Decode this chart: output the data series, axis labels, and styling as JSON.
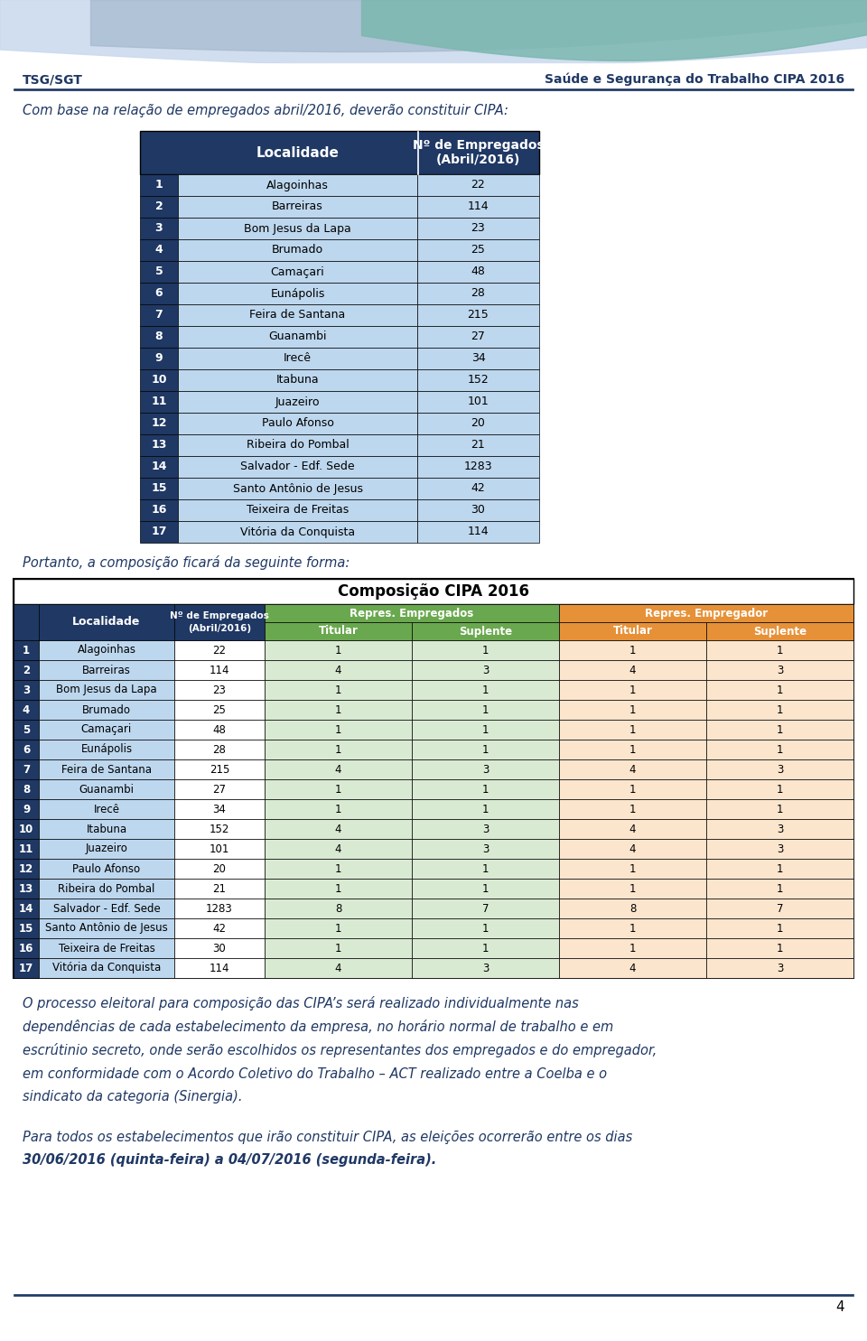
{
  "header_left": "TSG/SGT",
  "header_right": "Saúde e Segurança do Trabalho CIPA 2016",
  "intro_text": "Com base na relação de empregados abril/2016, deverão constituir CIPA:",
  "table1_header_col1": "Localidade",
  "table1_header_col2_line1": "Nº de Empregados",
  "table1_header_col2_line2": "(Abril/2016)",
  "table1_rows": [
    [
      1,
      "Alagoinhas",
      22
    ],
    [
      2,
      "Barreiras",
      114
    ],
    [
      3,
      "Bom Jesus da Lapa",
      23
    ],
    [
      4,
      "Brumado",
      25
    ],
    [
      5,
      "Camaçari",
      48
    ],
    [
      6,
      "Eunápolis",
      28
    ],
    [
      7,
      "Feira de Santana",
      215
    ],
    [
      8,
      "Guanambi",
      27
    ],
    [
      9,
      "Irecê",
      34
    ],
    [
      10,
      "Itabuna",
      152
    ],
    [
      11,
      "Juazeiro",
      101
    ],
    [
      12,
      "Paulo Afonso",
      20
    ],
    [
      13,
      "Ribeira do Pombal",
      21
    ],
    [
      14,
      "Salvador - Edf. Sede",
      1283
    ],
    [
      15,
      "Santo Antônio de Jesus",
      42
    ],
    [
      16,
      "Teixeira de Freitas",
      30
    ],
    [
      17,
      "Vitória da Conquista",
      114
    ]
  ],
  "between_text": "Portanto, a composição ficará da seguinte forma:",
  "table2_title": "Composição CIPA 2016",
  "table2_header1": "Repres. Empregados",
  "table2_header2": "Repres. Empregador",
  "table2_col_loc": "Localidade",
  "table2_col_emp_line1": "Nº de Empregados",
  "table2_col_emp_line2": "(Abril/2016)",
  "table2_subheader": [
    "Titular",
    "Suplente",
    "Titular",
    "Suplente"
  ],
  "table2_rows": [
    [
      1,
      "Alagoinhas",
      22,
      1,
      1,
      1,
      1
    ],
    [
      2,
      "Barreiras",
      114,
      4,
      3,
      4,
      3
    ],
    [
      3,
      "Bom Jesus da Lapa",
      23,
      1,
      1,
      1,
      1
    ],
    [
      4,
      "Brumado",
      25,
      1,
      1,
      1,
      1
    ],
    [
      5,
      "Camaçari",
      48,
      1,
      1,
      1,
      1
    ],
    [
      6,
      "Eunápolis",
      28,
      1,
      1,
      1,
      1
    ],
    [
      7,
      "Feira de Santana",
      215,
      4,
      3,
      4,
      3
    ],
    [
      8,
      "Guanambi",
      27,
      1,
      1,
      1,
      1
    ],
    [
      9,
      "Irecê",
      34,
      1,
      1,
      1,
      1
    ],
    [
      10,
      "Itabuna",
      152,
      4,
      3,
      4,
      3
    ],
    [
      11,
      "Juazeiro",
      101,
      4,
      3,
      4,
      3
    ],
    [
      12,
      "Paulo Afonso",
      20,
      1,
      1,
      1,
      1
    ],
    [
      13,
      "Ribeira do Pombal",
      21,
      1,
      1,
      1,
      1
    ],
    [
      14,
      "Salvador - Edf. Sede",
      1283,
      8,
      7,
      8,
      7
    ],
    [
      15,
      "Santo Antônio de Jesus",
      42,
      1,
      1,
      1,
      1
    ],
    [
      16,
      "Teixeira de Freitas",
      30,
      1,
      1,
      1,
      1
    ],
    [
      17,
      "Vitória da Conquista",
      114,
      4,
      3,
      4,
      3
    ]
  ],
  "bottom_lines": [
    "O processo eleitoral para composição das CIPA’s será realizado individualmente nas",
    "dependências de cada estabelecimento da empresa, no horário normal de trabalho e em",
    "escrútinio secreto, onde serão escolhidos os representantes dos empregados e do empregador,",
    "em conformidade com o Acordo Coletivo do Trabalho – ACT realizado entre a Coelba e o",
    "sindicato da categoria (Sinergia)."
  ],
  "final_line1": "Para todos os estabelecimentos que irão constituir CIPA, as eleições ocorrerão entre os dias",
  "final_line2": "30/06/2016 (quinta-feira) a 04/07/2016 (segunda-feira).",
  "page_number": "4",
  "color_dark_blue": "#1f3864",
  "color_light_blue": "#bdd7ee",
  "color_green_header": "#6aa84f",
  "color_green_cell": "#d9ead3",
  "color_orange_header": "#e69138",
  "color_orange_cell": "#fce5cd",
  "color_text_blue": "#1f3864",
  "color_white": "#ffffff",
  "color_black": "#000000",
  "color_border": "#000000",
  "swoosh_lightblue": "#c9d9ed",
  "swoosh_teal": "#7bb8b0",
  "swoosh_blue2": "#a4b8cc"
}
